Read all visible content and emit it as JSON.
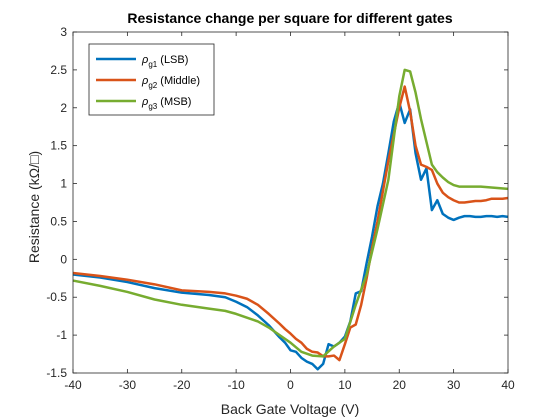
{
  "chart_data": {
    "type": "line",
    "title": "Resistance change per square for different gates",
    "xlabel": "Back Gate Voltage (V)",
    "ylabel": "Resistance (kΩ/□)",
    "xlim": [
      -40,
      40
    ],
    "ylim": [
      -1.5,
      3
    ],
    "xticks": [
      -40,
      -30,
      -20,
      -10,
      0,
      10,
      20,
      30,
      40
    ],
    "xtick_labels": [
      "-40",
      "-30",
      "-20",
      "-10",
      "0",
      "10",
      "20",
      "30",
      "40"
    ],
    "yticks": [
      -1.5,
      -1,
      -0.5,
      0,
      0.5,
      1,
      1.5,
      2,
      2.5,
      3
    ],
    "ytick_labels": [
      "-1.5",
      "-1",
      "-0.5",
      "0",
      "0.5",
      "1",
      "1.5",
      "2",
      "2.5",
      "3"
    ],
    "grid": false,
    "legend_position": "top-left",
    "series": [
      {
        "name": "ρg1 (LSB)",
        "legend_symbol": "ρ",
        "legend_sub": "g1",
        "legend_rest": "(LSB)",
        "color": "#0072BD",
        "x": [
          -40,
          -35,
          -30,
          -25,
          -20,
          -15,
          -12,
          -10,
          -8,
          -6,
          -4,
          -2,
          -1,
          0,
          1,
          2,
          3,
          4,
          5,
          6,
          7,
          8,
          9,
          10,
          11,
          12,
          13,
          14,
          15,
          16,
          17,
          18,
          19,
          20,
          21,
          22,
          23,
          24,
          25,
          26,
          27,
          28,
          29,
          30,
          31,
          32,
          33,
          34,
          35,
          36,
          37,
          38,
          39,
          40
        ],
        "y": [
          -0.2,
          -0.24,
          -0.3,
          -0.38,
          -0.44,
          -0.47,
          -0.5,
          -0.56,
          -0.63,
          -0.74,
          -0.87,
          -1.03,
          -1.1,
          -1.2,
          -1.22,
          -1.3,
          -1.35,
          -1.38,
          -1.45,
          -1.38,
          -1.12,
          -1.15,
          -1.1,
          -1.02,
          -0.82,
          -0.45,
          -0.42,
          -0.05,
          0.3,
          0.7,
          1.0,
          1.4,
          1.82,
          2.07,
          1.8,
          1.98,
          1.4,
          1.05,
          1.2,
          0.65,
          0.78,
          0.6,
          0.55,
          0.52,
          0.55,
          0.57,
          0.57,
          0.56,
          0.56,
          0.57,
          0.57,
          0.56,
          0.57,
          0.56
        ]
      },
      {
        "name": "ρg2 (Middle)",
        "legend_symbol": "ρ",
        "legend_sub": "g2",
        "legend_rest": "(Middle)",
        "color": "#D95319",
        "x": [
          -40,
          -35,
          -30,
          -25,
          -20,
          -15,
          -12,
          -10,
          -8,
          -6,
          -4,
          -2,
          -1,
          0,
          1,
          2,
          3,
          4,
          5,
          6,
          7,
          8,
          9,
          10,
          11,
          12,
          13,
          14,
          15,
          16,
          17,
          18,
          19,
          20,
          21,
          22,
          23,
          24,
          25,
          26,
          27,
          28,
          29,
          30,
          31,
          32,
          33,
          34,
          35,
          36,
          37,
          38,
          39,
          40
        ],
        "y": [
          -0.18,
          -0.22,
          -0.27,
          -0.33,
          -0.41,
          -0.43,
          -0.45,
          -0.48,
          -0.52,
          -0.6,
          -0.72,
          -0.85,
          -0.92,
          -0.98,
          -1.05,
          -1.1,
          -1.18,
          -1.22,
          -1.23,
          -1.28,
          -1.28,
          -1.27,
          -1.33,
          -1.12,
          -0.9,
          -0.86,
          -0.6,
          -0.25,
          0.15,
          0.5,
          0.9,
          1.3,
          1.65,
          2.0,
          2.28,
          1.95,
          1.5,
          1.25,
          1.22,
          1.18,
          1.0,
          0.88,
          0.82,
          0.78,
          0.75,
          0.75,
          0.76,
          0.77,
          0.77,
          0.78,
          0.8,
          0.8,
          0.8,
          0.81
        ]
      },
      {
        "name": "ρg3 (MSB)",
        "legend_symbol": "ρ",
        "legend_sub": "g3",
        "legend_rest": "(MSB)",
        "color": "#77AC30",
        "x": [
          -40,
          -35,
          -30,
          -25,
          -20,
          -15,
          -12,
          -10,
          -8,
          -6,
          -4,
          -2,
          0,
          2,
          4,
          6,
          8,
          10,
          12,
          14,
          16,
          18,
          20,
          21,
          22,
          23,
          24,
          25,
          26,
          27,
          28,
          29,
          30,
          31,
          35,
          40
        ],
        "y": [
          -0.28,
          -0.35,
          -0.43,
          -0.53,
          -0.6,
          -0.65,
          -0.68,
          -0.72,
          -0.77,
          -0.82,
          -0.9,
          -1.0,
          -1.1,
          -1.22,
          -1.27,
          -1.28,
          -1.15,
          -1.05,
          -0.6,
          -0.2,
          0.4,
          1.05,
          2.15,
          2.5,
          2.48,
          2.2,
          1.85,
          1.55,
          1.25,
          1.15,
          1.08,
          1.02,
          0.98,
          0.96,
          0.96,
          0.93
        ]
      }
    ]
  }
}
